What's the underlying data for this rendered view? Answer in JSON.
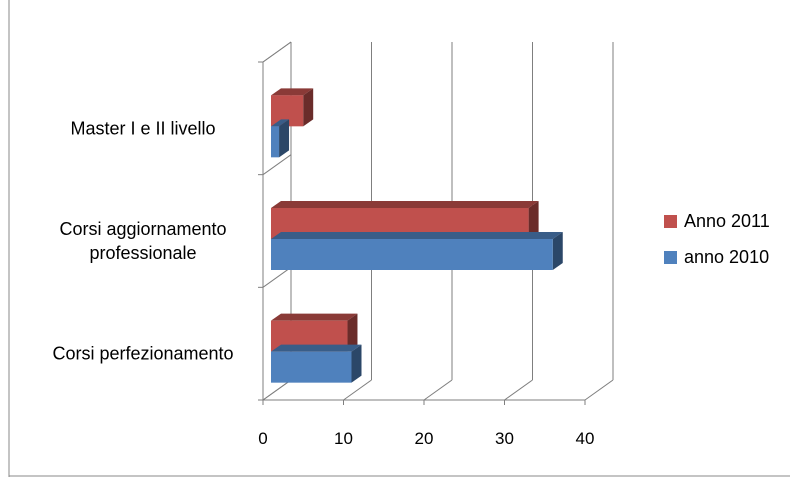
{
  "chart_data": {
    "type": "bar",
    "orientation": "horizontal",
    "style": "3d-clustered",
    "categories": [
      "Corsi perfezionamento",
      "Corsi aggiornamento professionale",
      "Master I e II livello"
    ],
    "category_display_lines": [
      [
        "Corsi perfezionamento"
      ],
      [
        "Corsi aggiornamento",
        "professionale"
      ],
      [
        "Master I e II livello"
      ]
    ],
    "series": [
      {
        "name": "anno 2010",
        "values": [
          10,
          35,
          1
        ],
        "color": "#4F81BD"
      },
      {
        "name": "Anno 2011",
        "values": [
          9.5,
          32,
          4
        ],
        "color": "#C0504D"
      }
    ],
    "xlim": [
      0,
      40
    ],
    "xticks": [
      "0",
      "10",
      "20",
      "30",
      "40"
    ],
    "grid": true,
    "legend": {
      "placement": "right",
      "order": [
        "Anno 2011",
        "anno 2010"
      ]
    },
    "title": "",
    "xlabel": "",
    "ylabel": ""
  }
}
